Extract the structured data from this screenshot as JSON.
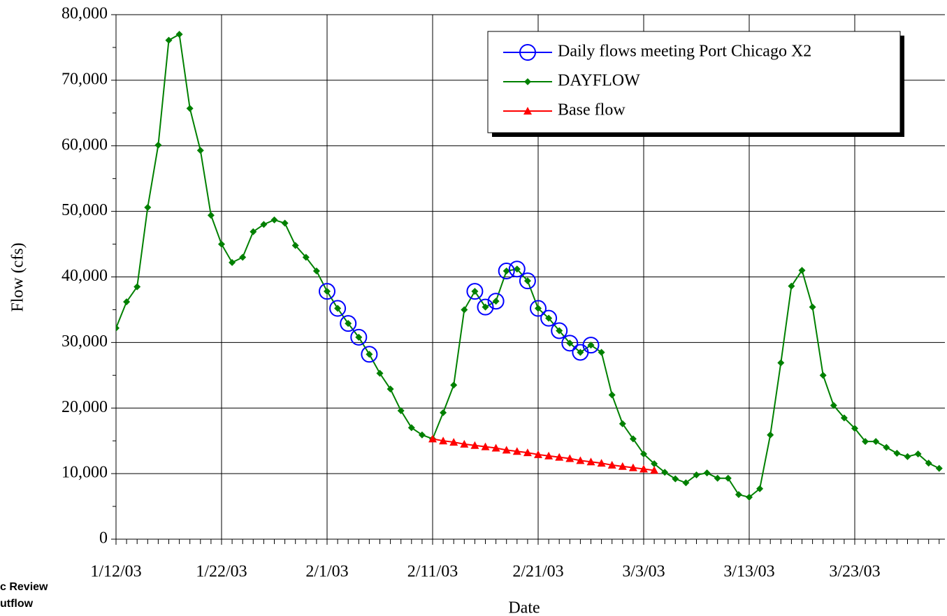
{
  "chart_data": {
    "type": "line",
    "x_label": "Date",
    "y_label": "Flow (cfs)",
    "footnote": [
      "c Review",
      "utflow"
    ],
    "x": [
      "1/12/03",
      "1/13/03",
      "1/14/03",
      "1/15/03",
      "1/16/03",
      "1/17/03",
      "1/18/03",
      "1/19/03",
      "1/20/03",
      "1/21/03",
      "1/22/03",
      "1/23/03",
      "1/24/03",
      "1/25/03",
      "1/26/03",
      "1/27/03",
      "1/28/03",
      "1/29/03",
      "1/30/03",
      "1/31/03",
      "2/1/03",
      "2/2/03",
      "2/3/03",
      "2/4/03",
      "2/5/03",
      "2/6/03",
      "2/7/03",
      "2/8/03",
      "2/9/03",
      "2/10/03",
      "2/11/03",
      "2/12/03",
      "2/13/03",
      "2/14/03",
      "2/15/03",
      "2/16/03",
      "2/17/03",
      "2/18/03",
      "2/19/03",
      "2/20/03",
      "2/21/03",
      "2/22/03",
      "2/23/03",
      "2/24/03",
      "2/25/03",
      "2/26/03",
      "2/27/03",
      "2/28/03",
      "3/1/03",
      "3/2/03",
      "3/3/03",
      "3/4/03",
      "3/5/03",
      "3/6/03",
      "3/7/03",
      "3/8/03",
      "3/9/03",
      "3/10/03",
      "3/11/03",
      "3/12/03",
      "3/13/03",
      "3/14/03",
      "3/15/03",
      "3/16/03",
      "3/17/03",
      "3/18/03",
      "3/19/03",
      "3/20/03",
      "3/21/03",
      "3/22/03",
      "3/23/03",
      "3/24/03",
      "3/25/03",
      "3/26/03",
      "3/27/03",
      "3/28/03",
      "3/29/03",
      "3/30/03",
      "3/31/03"
    ],
    "xticks": [
      "1/12/03",
      "1/22/03",
      "2/1/03",
      "2/11/03",
      "2/21/03",
      "3/3/03",
      "3/13/03",
      "3/23/03"
    ],
    "ylim": [
      0,
      80000
    ],
    "yticks": [
      0,
      {
        "value": 10000,
        "label": "10,000"
      },
      {
        "value": 20000,
        "label": "20,000"
      },
      {
        "value": 30000,
        "label": "30,000"
      },
      {
        "value": 40000,
        "label": "40,000"
      },
      {
        "value": 50000,
        "label": "50,000"
      },
      {
        "value": 60000,
        "label": "60,000"
      },
      {
        "value": 70000,
        "label": "70,000"
      },
      {
        "value": 80000,
        "label": "80,000"
      }
    ],
    "grid": true,
    "legend": "upper right",
    "series": [
      {
        "name": "Daily flows meeting Port Chicago X2",
        "color": "#0000ff",
        "marker": "circle",
        "line": false,
        "values": [
          null,
          null,
          null,
          null,
          null,
          null,
          null,
          null,
          null,
          null,
          null,
          null,
          null,
          null,
          null,
          null,
          null,
          null,
          null,
          null,
          37800,
          35200,
          32900,
          30800,
          28200,
          null,
          null,
          null,
          null,
          null,
          null,
          null,
          null,
          null,
          37800,
          35400,
          36300,
          40900,
          41200,
          39400,
          35200,
          33700,
          31800,
          29900,
          28500,
          29600,
          null,
          null,
          null,
          null,
          null,
          null,
          null,
          null,
          null,
          null,
          null,
          null,
          null,
          null,
          null,
          null,
          null,
          null,
          null,
          null,
          null,
          null,
          null,
          null,
          null,
          null,
          null,
          null,
          null,
          null,
          null,
          null,
          null
        ]
      },
      {
        "name": "DAYFLOW",
        "color": "#008000",
        "marker": "diamond",
        "line": true,
        "values": [
          32200,
          36200,
          38500,
          50600,
          60100,
          76100,
          77000,
          65700,
          59300,
          49400,
          45000,
          42200,
          43000,
          46900,
          48000,
          48700,
          48200,
          44800,
          43000,
          40900,
          37800,
          35200,
          32900,
          30800,
          28200,
          25300,
          22900,
          19600,
          17000,
          15900,
          15300,
          19300,
          23500,
          35000,
          37800,
          35400,
          36300,
          40900,
          41200,
          39400,
          35200,
          33700,
          31800,
          29900,
          28500,
          29600,
          28500,
          22000,
          17600,
          15300,
          13000,
          11500,
          10200,
          9200,
          8600,
          9800,
          10100,
          9300,
          9300,
          6800,
          6400,
          7700,
          15900,
          26900,
          38600,
          41000,
          35400,
          25000,
          20400,
          18500,
          16900,
          14900,
          14900,
          14000,
          13100,
          12600,
          13000,
          11600,
          10800
        ]
      },
      {
        "name": "Base flow",
        "color": "#ff0000",
        "marker": "triangle",
        "line": true,
        "values": [
          null,
          null,
          null,
          null,
          null,
          null,
          null,
          null,
          null,
          null,
          null,
          null,
          null,
          null,
          null,
          null,
          null,
          null,
          null,
          null,
          null,
          null,
          null,
          null,
          null,
          null,
          null,
          null,
          null,
          null,
          15300,
          15000,
          14800,
          14500,
          14300,
          14100,
          13900,
          13600,
          13400,
          13200,
          12900,
          12700,
          12500,
          12300,
          12000,
          11800,
          11600,
          11300,
          11100,
          10900,
          10700,
          10500,
          null,
          null,
          null,
          null,
          null,
          null,
          null,
          null,
          null,
          null,
          null,
          null,
          null,
          null,
          null,
          null,
          null,
          null,
          null,
          null,
          null,
          null,
          null,
          null,
          null,
          null,
          null
        ]
      }
    ]
  }
}
